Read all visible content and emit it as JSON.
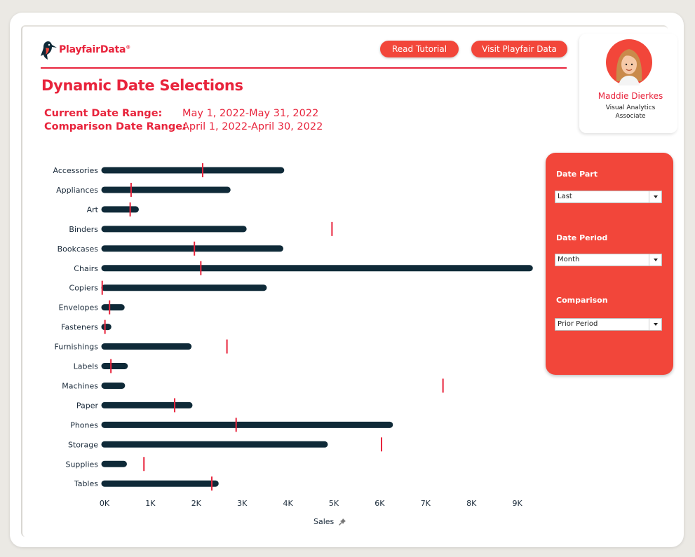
{
  "brand": {
    "logo_text": "PlayfairData",
    "accent_color": "#e8243c",
    "button_color": "#f2463a",
    "bar_color": "#0f2a38",
    "marker_color": "#e8243c"
  },
  "header": {
    "buttons": [
      {
        "label": "Read Tutorial"
      },
      {
        "label": "Visit Playfair Data"
      }
    ],
    "title": "Dynamic Date Selections"
  },
  "date_ranges": {
    "current_label": "Current Date Range:",
    "current_value": "May 1, 2022-May 31, 2022",
    "comparison_label": "Comparison Date Range:",
    "comparison_value": "April 1, 2022-April 30, 2022"
  },
  "profile": {
    "name": "Maddie Dierkes",
    "role": "Visual Analytics Associate",
    "avatar_icon": "person-avatar-icon"
  },
  "controls": {
    "date_part": {
      "label": "Date Part",
      "value": "Last"
    },
    "date_period": {
      "label": "Date Period",
      "value": "Month"
    },
    "comparison": {
      "label": "Comparison",
      "value": "Prior Period"
    }
  },
  "chart_data": {
    "type": "bar",
    "orientation": "horizontal",
    "xlabel": "Sales",
    "xlim": [
      0,
      9000
    ],
    "xticks": [
      "0K",
      "1K",
      "2K",
      "3K",
      "4K",
      "5K",
      "6K",
      "7K",
      "8K",
      "9K"
    ],
    "categories": [
      "Accessories",
      "Appliances",
      "Art",
      "Binders",
      "Bookcases",
      "Chairs",
      "Copiers",
      "Envelopes",
      "Fasteners",
      "Furnishings",
      "Labels",
      "Machines",
      "Paper",
      "Phones",
      "Storage",
      "Supplies",
      "Tables"
    ],
    "series": [
      {
        "values": [
          3850,
          2680,
          680,
          3030,
          3830,
          9270,
          3470,
          370,
          80,
          1830,
          440,
          380,
          1850,
          6220,
          4800,
          420,
          2420
        ]
      },
      {
        "values": [
          2140,
          580,
          560,
          4960,
          1960,
          2100,
          -50,
          110,
          10,
          2670,
          140,
          7380,
          1530,
          2870,
          6040,
          860,
          2340
        ]
      }
    ],
    "series_roles": [
      "bar",
      "reference-line"
    ],
    "grid": false
  }
}
